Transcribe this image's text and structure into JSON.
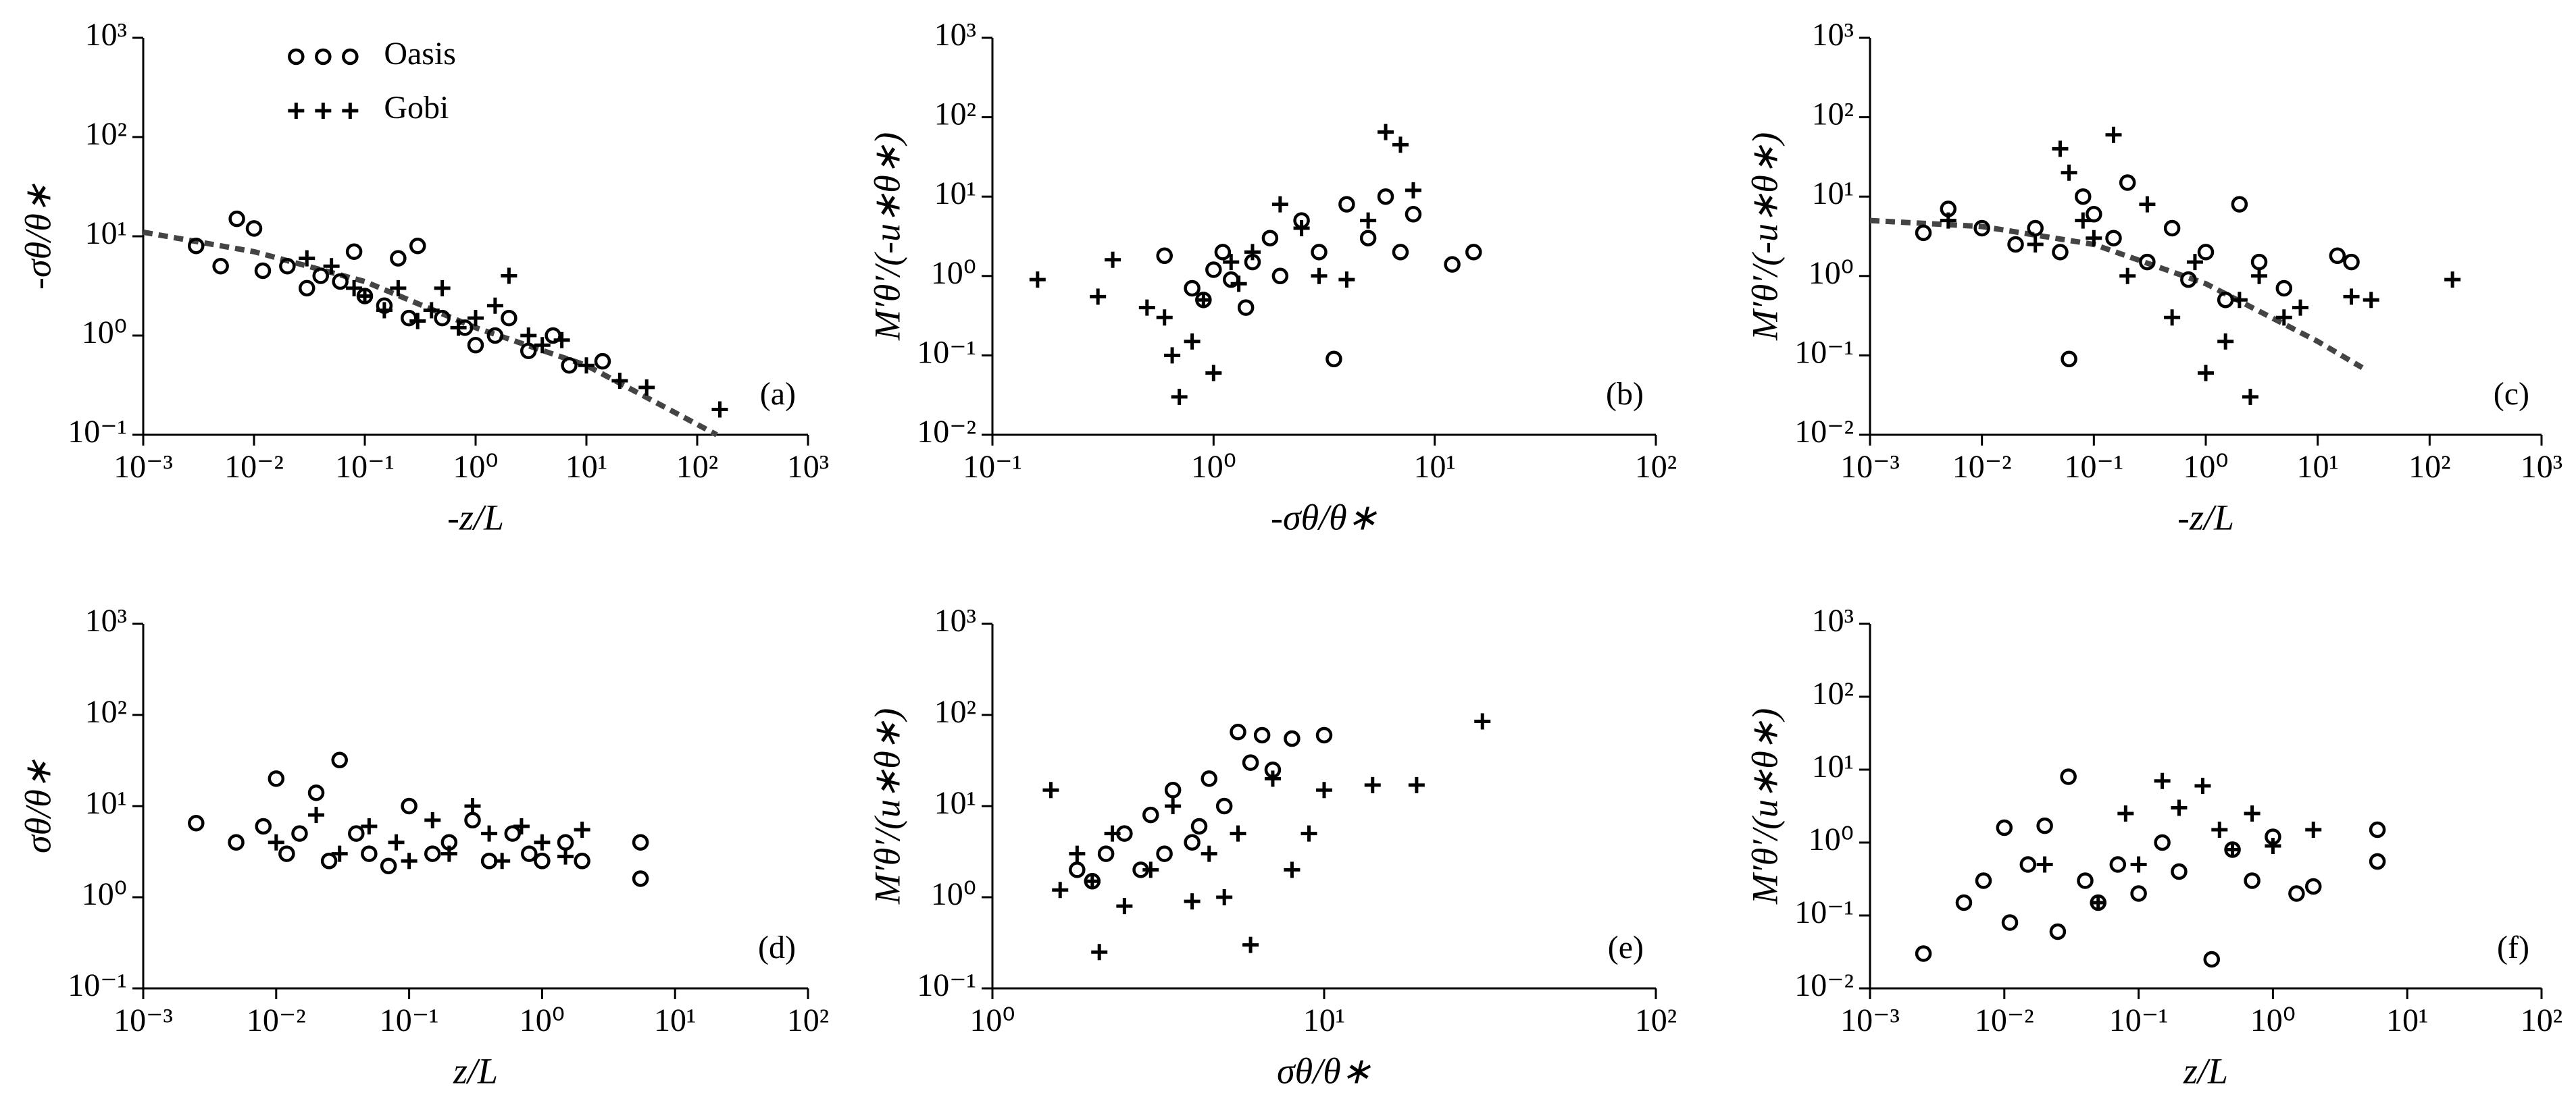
{
  "chart_data": [
    {
      "type": "scatter",
      "annotation": "(a)",
      "xlabel": "-z/L",
      "ylabel": "-σθ/θ∗",
      "xscale": "log",
      "yscale": "log",
      "legend": "upper center",
      "xlim": [
        0.001,
        1000
      ],
      "ylim": [
        0.1,
        1000
      ],
      "xticks": [
        {
          "value": 0.001,
          "label": "10⁻³"
        },
        {
          "value": 0.01,
          "label": "10⁻²"
        },
        {
          "value": 0.1,
          "label": "10⁻¹"
        },
        {
          "value": 1,
          "label": "10⁰"
        },
        {
          "value": 10,
          "label": "10¹"
        },
        {
          "value": 100,
          "label": "10²"
        },
        {
          "value": 1000,
          "label": "10³"
        }
      ],
      "yticks": [
        {
          "value": 0.1,
          "label": "10⁻¹"
        },
        {
          "value": 1,
          "label": "10⁰"
        },
        {
          "value": 10,
          "label": "10¹"
        },
        {
          "value": 100,
          "label": "10²"
        },
        {
          "value": 1000,
          "label": "10³"
        }
      ],
      "series": [
        {
          "name": "Oasis",
          "marker": "circle",
          "color": "#000000",
          "x": [
            0.003,
            0.005,
            0.007,
            0.01,
            0.012,
            0.02,
            0.03,
            0.04,
            0.06,
            0.08,
            0.1,
            0.15,
            0.2,
            0.25,
            0.3,
            0.5,
            0.8,
            1,
            1.5,
            2,
            3,
            5,
            7,
            14
          ],
          "values": [
            8,
            5,
            15,
            12,
            4.5,
            5,
            3,
            4,
            3.5,
            7,
            2.5,
            2,
            6,
            1.5,
            8,
            1.5,
            1.2,
            0.8,
            1,
            1.5,
            0.7,
            1,
            0.5,
            0.55
          ]
        },
        {
          "name": "Gobi",
          "marker": "plus",
          "color": "#000000",
          "x": [
            0.03,
            0.05,
            0.08,
            0.1,
            0.15,
            0.2,
            0.3,
            0.4,
            0.5,
            0.7,
            1,
            1.5,
            2,
            3,
            4,
            6,
            10,
            20,
            35,
            160
          ],
          "values": [
            6,
            5,
            3,
            2.5,
            1.8,
            3,
            1.4,
            1.8,
            3,
            1.2,
            1.5,
            2,
            4,
            1,
            0.8,
            0.9,
            0.5,
            0.35,
            0.3,
            0.18
          ]
        }
      ],
      "fit": {
        "color": "#444444",
        "x": [
          0.001,
          0.01,
          0.1,
          1,
          10,
          150
        ],
        "values": [
          11,
          7,
          3.5,
          1.2,
          0.5,
          0.1
        ]
      }
    },
    {
      "type": "scatter",
      "annotation": "(b)",
      "xlabel": "-σθ/θ∗",
      "ylabel": "M′θ′/(-u∗θ∗)",
      "xscale": "log",
      "yscale": "log",
      "xlim": [
        0.1,
        100
      ],
      "ylim": [
        0.01,
        1000
      ],
      "xticks": [
        {
          "value": 0.1,
          "label": "10⁻¹"
        },
        {
          "value": 1,
          "label": "10⁰"
        },
        {
          "value": 10,
          "label": "10¹"
        },
        {
          "value": 100,
          "label": "10²"
        }
      ],
      "yticks": [
        {
          "value": 0.01,
          "label": "10⁻²"
        },
        {
          "value": 0.1,
          "label": "10⁻¹"
        },
        {
          "value": 1,
          "label": "10⁰"
        },
        {
          "value": 10,
          "label": "10¹"
        },
        {
          "value": 100,
          "label": "10²"
        },
        {
          "value": 1000,
          "label": "10³"
        }
      ],
      "series": [
        {
          "marker": "circle",
          "color": "#000000",
          "x": [
            0.6,
            0.8,
            0.9,
            1,
            1.1,
            1.2,
            1.4,
            1.5,
            1.8,
            2,
            2.5,
            3,
            3.5,
            4,
            5,
            6,
            7,
            8,
            12,
            15
          ],
          "values": [
            1.8,
            0.7,
            0.5,
            1.2,
            2,
            0.9,
            0.4,
            1.5,
            3,
            1,
            5,
            2,
            0.09,
            8,
            3,
            10,
            2,
            6,
            1.4,
            2
          ]
        },
        {
          "marker": "plus",
          "color": "#000000",
          "x": [
            0.16,
            0.3,
            0.35,
            0.5,
            0.6,
            0.65,
            0.7,
            0.8,
            0.9,
            1,
            1.2,
            1.3,
            1.5,
            2,
            2.5,
            3,
            4,
            5,
            6,
            7,
            8
          ],
          "values": [
            0.9,
            0.55,
            1.6,
            0.4,
            0.3,
            0.1,
            0.03,
            0.15,
            0.5,
            0.06,
            1.5,
            0.8,
            2,
            8,
            4,
            1,
            0.9,
            5,
            65,
            45,
            12
          ]
        }
      ]
    },
    {
      "type": "scatter",
      "annotation": "(c)",
      "xlabel": "-z/L",
      "ylabel": "M′θ′/(-u∗θ∗)",
      "xscale": "log",
      "yscale": "log",
      "xlim": [
        0.001,
        1000
      ],
      "ylim": [
        0.01,
        1000
      ],
      "xticks": [
        {
          "value": 0.001,
          "label": "10⁻³"
        },
        {
          "value": 0.01,
          "label": "10⁻²"
        },
        {
          "value": 0.1,
          "label": "10⁻¹"
        },
        {
          "value": 1,
          "label": "10⁰"
        },
        {
          "value": 10,
          "label": "10¹"
        },
        {
          "value": 100,
          "label": "10²"
        },
        {
          "value": 1000,
          "label": "10³"
        }
      ],
      "yticks": [
        {
          "value": 0.01,
          "label": "10⁻²"
        },
        {
          "value": 0.1,
          "label": "10⁻¹"
        },
        {
          "value": 1,
          "label": "10⁰"
        },
        {
          "value": 10,
          "label": "10¹"
        },
        {
          "value": 100,
          "label": "10²"
        },
        {
          "value": 1000,
          "label": "10³"
        }
      ],
      "series": [
        {
          "marker": "circle",
          "color": "#000000",
          "x": [
            0.003,
            0.005,
            0.01,
            0.02,
            0.03,
            0.05,
            0.06,
            0.08,
            0.1,
            0.15,
            0.2,
            0.3,
            0.5,
            0.7,
            1,
            1.5,
            2,
            3,
            5,
            15,
            20
          ],
          "values": [
            3.5,
            7,
            4,
            2.5,
            4,
            2,
            0.09,
            10,
            6,
            3,
            15,
            1.5,
            4,
            0.9,
            2,
            0.5,
            8,
            1.5,
            0.7,
            1.8,
            1.5
          ]
        },
        {
          "marker": "plus",
          "color": "#000000",
          "x": [
            0.005,
            0.03,
            0.05,
            0.06,
            0.08,
            0.1,
            0.15,
            0.2,
            0.3,
            0.5,
            0.8,
            1,
            1.5,
            2,
            2.5,
            3,
            5,
            7,
            20,
            30,
            160
          ],
          "values": [
            5,
            2.5,
            40,
            20,
            5,
            3,
            60,
            1,
            8,
            0.3,
            1.5,
            0.06,
            0.15,
            0.5,
            0.03,
            1,
            0.3,
            0.4,
            0.55,
            0.5,
            0.9
          ]
        }
      ],
      "fit": {
        "color": "#444444",
        "x": [
          0.001,
          0.01,
          0.1,
          1,
          10,
          25
        ],
        "values": [
          5,
          4.2,
          2.5,
          0.8,
          0.15,
          0.07
        ]
      }
    },
    {
      "type": "scatter",
      "annotation": "(d)",
      "xlabel": "z/L",
      "ylabel": "σθ/θ∗",
      "xscale": "log",
      "yscale": "log",
      "xlim": [
        0.001,
        100
      ],
      "ylim": [
        0.1,
        1000
      ],
      "xticks": [
        {
          "value": 0.001,
          "label": "10⁻³"
        },
        {
          "value": 0.01,
          "label": "10⁻²"
        },
        {
          "value": 0.1,
          "label": "10⁻¹"
        },
        {
          "value": 1,
          "label": "10⁰"
        },
        {
          "value": 10,
          "label": "10¹"
        },
        {
          "value": 100,
          "label": "10²"
        }
      ],
      "yticks": [
        {
          "value": 0.1,
          "label": "10⁻¹"
        },
        {
          "value": 1,
          "label": "10⁰"
        },
        {
          "value": 10,
          "label": "10¹"
        },
        {
          "value": 100,
          "label": "10²"
        },
        {
          "value": 1000,
          "label": "10³"
        }
      ],
      "series": [
        {
          "marker": "circle",
          "color": "#000000",
          "x": [
            0.0025,
            0.005,
            0.008,
            0.01,
            0.012,
            0.015,
            0.02,
            0.025,
            0.03,
            0.04,
            0.05,
            0.07,
            0.1,
            0.15,
            0.2,
            0.3,
            0.4,
            0.6,
            0.8,
            1,
            1.5,
            2,
            5.5,
            5.5
          ],
          "values": [
            6.5,
            4,
            6,
            20,
            3,
            5,
            14,
            2.5,
            32,
            5,
            3,
            2.2,
            10,
            3,
            4,
            7,
            2.5,
            5,
            3,
            2.5,
            4,
            2.5,
            4,
            1.6
          ]
        },
        {
          "marker": "plus",
          "color": "#000000",
          "x": [
            0.01,
            0.02,
            0.03,
            0.05,
            0.08,
            0.1,
            0.15,
            0.2,
            0.3,
            0.4,
            0.5,
            0.7,
            1,
            1.5,
            2
          ],
          "values": [
            4,
            8,
            3,
            6,
            4,
            2.5,
            7,
            3,
            10,
            5,
            2.5,
            6,
            4,
            2.8,
            5.5
          ]
        }
      ]
    },
    {
      "type": "scatter",
      "annotation": "(e)",
      "xlabel": "σθ/θ∗",
      "ylabel": "M′θ′/(u∗θ∗)",
      "xscale": "log",
      "yscale": "log",
      "xlim": [
        1,
        100
      ],
      "ylim": [
        0.1,
        1000
      ],
      "xticks": [
        {
          "value": 1,
          "label": "10⁰"
        },
        {
          "value": 10,
          "label": "10¹"
        },
        {
          "value": 100,
          "label": "10²"
        }
      ],
      "yticks": [
        {
          "value": 0.1,
          "label": "10⁻¹"
        },
        {
          "value": 1,
          "label": "10⁰"
        },
        {
          "value": 10,
          "label": "10¹"
        },
        {
          "value": 100,
          "label": "10²"
        },
        {
          "value": 1000,
          "label": "10³"
        }
      ],
      "series": [
        {
          "marker": "circle",
          "color": "#000000",
          "x": [
            1.8,
            2,
            2.2,
            2.5,
            2.8,
            3,
            3.3,
            3.5,
            4,
            4.2,
            4.5,
            5,
            5.5,
            6,
            6.5,
            7,
            8,
            10
          ],
          "values": [
            2,
            1.5,
            3,
            5,
            2,
            8,
            3,
            15,
            4,
            6,
            20,
            10,
            65,
            30,
            60,
            25,
            55,
            60
          ]
        },
        {
          "marker": "plus",
          "color": "#000000",
          "x": [
            1.5,
            1.6,
            1.8,
            2,
            2.1,
            2.3,
            2.5,
            3,
            3.5,
            4,
            4.5,
            5,
            5.5,
            6,
            7,
            8,
            9,
            10,
            14,
            19,
            30
          ],
          "values": [
            15,
            1.2,
            3,
            1.5,
            0.25,
            5,
            0.8,
            2,
            10,
            0.9,
            3,
            1,
            5,
            0.3,
            20,
            2,
            5,
            15,
            17,
            17,
            85
          ]
        }
      ]
    },
    {
      "type": "scatter",
      "annotation": "(f)",
      "xlabel": "z/L",
      "ylabel": "M′θ′/(u∗θ∗)",
      "xscale": "log",
      "yscale": "log",
      "xlim": [
        0.001,
        100
      ],
      "ylim": [
        0.01,
        1000
      ],
      "xticks": [
        {
          "value": 0.001,
          "label": "10⁻³"
        },
        {
          "value": 0.01,
          "label": "10⁻²"
        },
        {
          "value": 0.1,
          "label": "10⁻¹"
        },
        {
          "value": 1,
          "label": "10⁰"
        },
        {
          "value": 10,
          "label": "10¹"
        },
        {
          "value": 100,
          "label": "10²"
        }
      ],
      "yticks": [
        {
          "value": 0.01,
          "label": "10⁻²"
        },
        {
          "value": 0.1,
          "label": "10⁻¹"
        },
        {
          "value": 1,
          "label": "10⁰"
        },
        {
          "value": 10,
          "label": "10¹"
        },
        {
          "value": 100,
          "label": "10²"
        },
        {
          "value": 1000,
          "label": "10³"
        }
      ],
      "series": [
        {
          "marker": "circle",
          "color": "#000000",
          "x": [
            0.0025,
            0.005,
            0.007,
            0.01,
            0.011,
            0.015,
            0.02,
            0.025,
            0.03,
            0.04,
            0.05,
            0.07,
            0.1,
            0.15,
            0.2,
            0.35,
            0.5,
            0.7,
            1,
            1.5,
            2,
            6,
            6
          ],
          "values": [
            0.03,
            0.15,
            0.3,
            1.6,
            0.08,
            0.5,
            1.7,
            0.06,
            8,
            0.3,
            0.15,
            0.5,
            0.2,
            1,
            0.4,
            0.025,
            0.8,
            0.3,
            1.2,
            0.2,
            0.25,
            1.5,
            0.55
          ]
        },
        {
          "marker": "plus",
          "color": "#000000",
          "x": [
            0.02,
            0.05,
            0.08,
            0.1,
            0.15,
            0.2,
            0.3,
            0.4,
            0.5,
            0.7,
            1,
            2
          ],
          "values": [
            0.5,
            0.15,
            2.5,
            0.5,
            7,
            3,
            6,
            1.5,
            0.8,
            2.5,
            0.9,
            1.5
          ]
        }
      ]
    }
  ]
}
